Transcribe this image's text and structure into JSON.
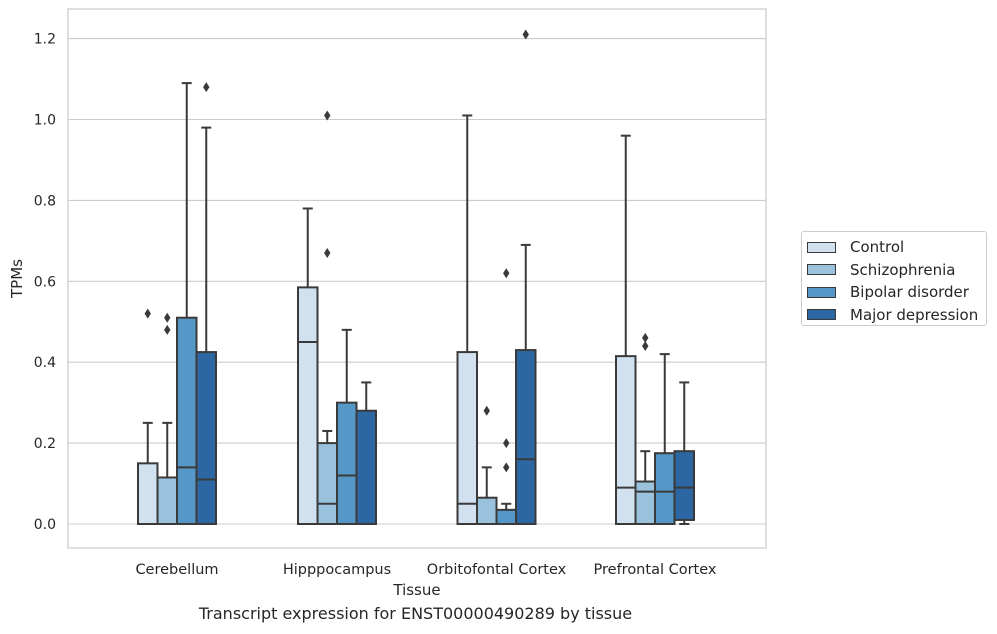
{
  "chart_data": {
    "type": "box",
    "xlabel": "Tissue",
    "ylabel": "TPMs",
    "ylim": [
      -0.06,
      1.27
    ],
    "yticks": [
      0.0,
      0.2,
      0.4,
      0.6,
      0.8,
      1.0,
      1.2
    ],
    "ytick_labels": [
      "0.0",
      "0.2",
      "0.4",
      "0.6",
      "0.8",
      "1.0",
      "1.2"
    ],
    "grid": "horizontal",
    "legend_position": "right",
    "categories": [
      "Cerebellum",
      "Hipppocampus",
      "Orbitofontal Cortex",
      "Prefrontal Cortex"
    ],
    "series": [
      {
        "name": "Control",
        "color": "#d1e1f0",
        "boxes": [
          {
            "min": 0.0,
            "q1": 0.0,
            "median": 0.0,
            "q3": 0.15,
            "max": 0.25,
            "outliers": [
              0.52
            ]
          },
          {
            "min": 0.0,
            "q1": 0.0,
            "median": 0.45,
            "q3": 0.585,
            "max": 0.78,
            "outliers": []
          },
          {
            "min": 0.0,
            "q1": 0.0,
            "median": 0.05,
            "q3": 0.425,
            "max": 1.01,
            "outliers": []
          },
          {
            "min": 0.0,
            "q1": 0.0,
            "median": 0.09,
            "q3": 0.415,
            "max": 0.96,
            "outliers": []
          }
        ]
      },
      {
        "name": "Schizophrenia",
        "color": "#9ac2dc",
        "boxes": [
          {
            "min": 0.0,
            "q1": 0.0,
            "median": 0.0,
            "q3": 0.115,
            "max": 0.25,
            "outliers": [
              0.51,
              0.48
            ]
          },
          {
            "min": 0.0,
            "q1": 0.0,
            "median": 0.05,
            "q3": 0.2,
            "max": 0.23,
            "outliers": [
              1.01,
              0.67
            ]
          },
          {
            "min": 0.0,
            "q1": 0.0,
            "median": 0.0,
            "q3": 0.065,
            "max": 0.14,
            "outliers": [
              0.28
            ]
          },
          {
            "min": 0.0,
            "q1": 0.0,
            "median": 0.08,
            "q3": 0.105,
            "max": 0.18,
            "outliers": [
              0.46,
              0.44
            ]
          }
        ]
      },
      {
        "name": "Bipolar disorder",
        "color": "#5597c6",
        "boxes": [
          {
            "min": 0.0,
            "q1": 0.0,
            "median": 0.14,
            "q3": 0.51,
            "max": 1.09,
            "outliers": []
          },
          {
            "min": 0.0,
            "q1": 0.0,
            "median": 0.12,
            "q3": 0.3,
            "max": 0.48,
            "outliers": []
          },
          {
            "min": 0.0,
            "q1": 0.0,
            "median": 0.0,
            "q3": 0.035,
            "max": 0.05,
            "outliers": [
              0.62,
              0.2,
              0.14
            ]
          },
          {
            "min": 0.0,
            "q1": 0.0,
            "median": 0.08,
            "q3": 0.175,
            "max": 0.42,
            "outliers": []
          }
        ]
      },
      {
        "name": "Major depression",
        "color": "#2c67a3",
        "boxes": [
          {
            "min": 0.0,
            "q1": 0.0,
            "median": 0.11,
            "q3": 0.425,
            "max": 0.98,
            "outliers": [
              1.08
            ]
          },
          {
            "min": 0.0,
            "q1": 0.0,
            "median": 0.0,
            "q3": 0.28,
            "max": 0.35,
            "outliers": []
          },
          {
            "min": 0.0,
            "q1": 0.0,
            "median": 0.16,
            "q3": 0.43,
            "max": 0.69,
            "outliers": [
              1.21
            ]
          },
          {
            "min": 0.0,
            "q1": 0.01,
            "median": 0.09,
            "q3": 0.18,
            "max": 0.35,
            "outliers": []
          }
        ]
      }
    ]
  },
  "caption": "Transcript expression for ENST00000490289 by tissue"
}
